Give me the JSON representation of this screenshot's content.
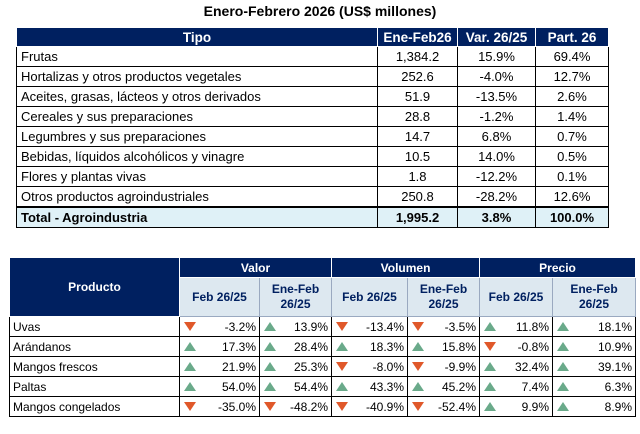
{
  "title": "Enero-Febrero 2026 (US$ millones)",
  "table1": {
    "headers": [
      "Tipo",
      "Ene-Feb26",
      "Var. 26/25",
      "Part. 26"
    ],
    "rows": [
      {
        "tipo": "Frutas",
        "ene_feb": "1,384.2",
        "var": "15.9%",
        "part": "69.4%"
      },
      {
        "tipo": "Hortalizas y otros productos vegetales",
        "ene_feb": "252.6",
        "var": "-4.0%",
        "part": "12.7%"
      },
      {
        "tipo": "Aceites, grasas, lácteos y otros derivados",
        "ene_feb": "51.9",
        "var": "-13.5%",
        "part": "2.6%"
      },
      {
        "tipo": "Cereales y sus preparaciones",
        "ene_feb": "28.8",
        "var": "-1.2%",
        "part": "1.4%"
      },
      {
        "tipo": "Legumbres y sus preparaciones",
        "ene_feb": "14.7",
        "var": "6.8%",
        "part": "0.7%"
      },
      {
        "tipo": "Bebidas, líquidos alcohólicos y vinagre",
        "ene_feb": "10.5",
        "var": "14.0%",
        "part": "0.5%"
      },
      {
        "tipo": "Flores y plantas vivas",
        "ene_feb": "1.8",
        "var": "-12.2%",
        "part": "0.1%"
      },
      {
        "tipo": "Otros productos agroindustriales",
        "ene_feb": "250.8",
        "var": "-28.2%",
        "part": "12.6%"
      }
    ],
    "total": {
      "tipo": "Total - Agroindustria",
      "ene_feb": "1,995.2",
      "var": "3.8%",
      "part": "100.0%"
    }
  },
  "table2": {
    "producto_header": "Producto",
    "groups": [
      "Valor",
      "Volumen",
      "Precio"
    ],
    "sub_feb": "Feb 26/25",
    "sub_ene_a": "Ene-Feb",
    "sub_ene_b": "26/25",
    "colors": {
      "up": "#6aaa8a",
      "down": "#e0582a"
    },
    "rows": [
      {
        "producto": "Uvas",
        "cells": [
          {
            "v": "-3.2%",
            "dir": "down"
          },
          {
            "v": "13.9%",
            "dir": "up"
          },
          {
            "v": "-13.4%",
            "dir": "down"
          },
          {
            "v": "-3.5%",
            "dir": "down"
          },
          {
            "v": "11.8%",
            "dir": "up"
          },
          {
            "v": "18.1%",
            "dir": "up"
          }
        ]
      },
      {
        "producto": "Arándanos",
        "cells": [
          {
            "v": "17.3%",
            "dir": "up"
          },
          {
            "v": "28.4%",
            "dir": "up"
          },
          {
            "v": "18.3%",
            "dir": "up"
          },
          {
            "v": "15.8%",
            "dir": "up"
          },
          {
            "v": "-0.8%",
            "dir": "down"
          },
          {
            "v": "10.9%",
            "dir": "up"
          }
        ]
      },
      {
        "producto": "Mangos frescos",
        "cells": [
          {
            "v": "21.9%",
            "dir": "up"
          },
          {
            "v": "25.3%",
            "dir": "up"
          },
          {
            "v": "-8.0%",
            "dir": "down"
          },
          {
            "v": "-9.9%",
            "dir": "down"
          },
          {
            "v": "32.4%",
            "dir": "up"
          },
          {
            "v": "39.1%",
            "dir": "up"
          }
        ]
      },
      {
        "producto": "Paltas",
        "cells": [
          {
            "v": "54.0%",
            "dir": "up"
          },
          {
            "v": "54.4%",
            "dir": "up"
          },
          {
            "v": "43.3%",
            "dir": "up"
          },
          {
            "v": "45.2%",
            "dir": "up"
          },
          {
            "v": "7.4%",
            "dir": "up"
          },
          {
            "v": "6.3%",
            "dir": "up"
          }
        ]
      },
      {
        "producto": "Mangos congelados",
        "cells": [
          {
            "v": "-35.0%",
            "dir": "down"
          },
          {
            "v": "-48.2%",
            "dir": "down"
          },
          {
            "v": "-40.9%",
            "dir": "down"
          },
          {
            "v": "-52.4%",
            "dir": "down"
          },
          {
            "v": "9.9%",
            "dir": "up"
          },
          {
            "v": "8.9%",
            "dir": "up"
          }
        ]
      }
    ]
  }
}
